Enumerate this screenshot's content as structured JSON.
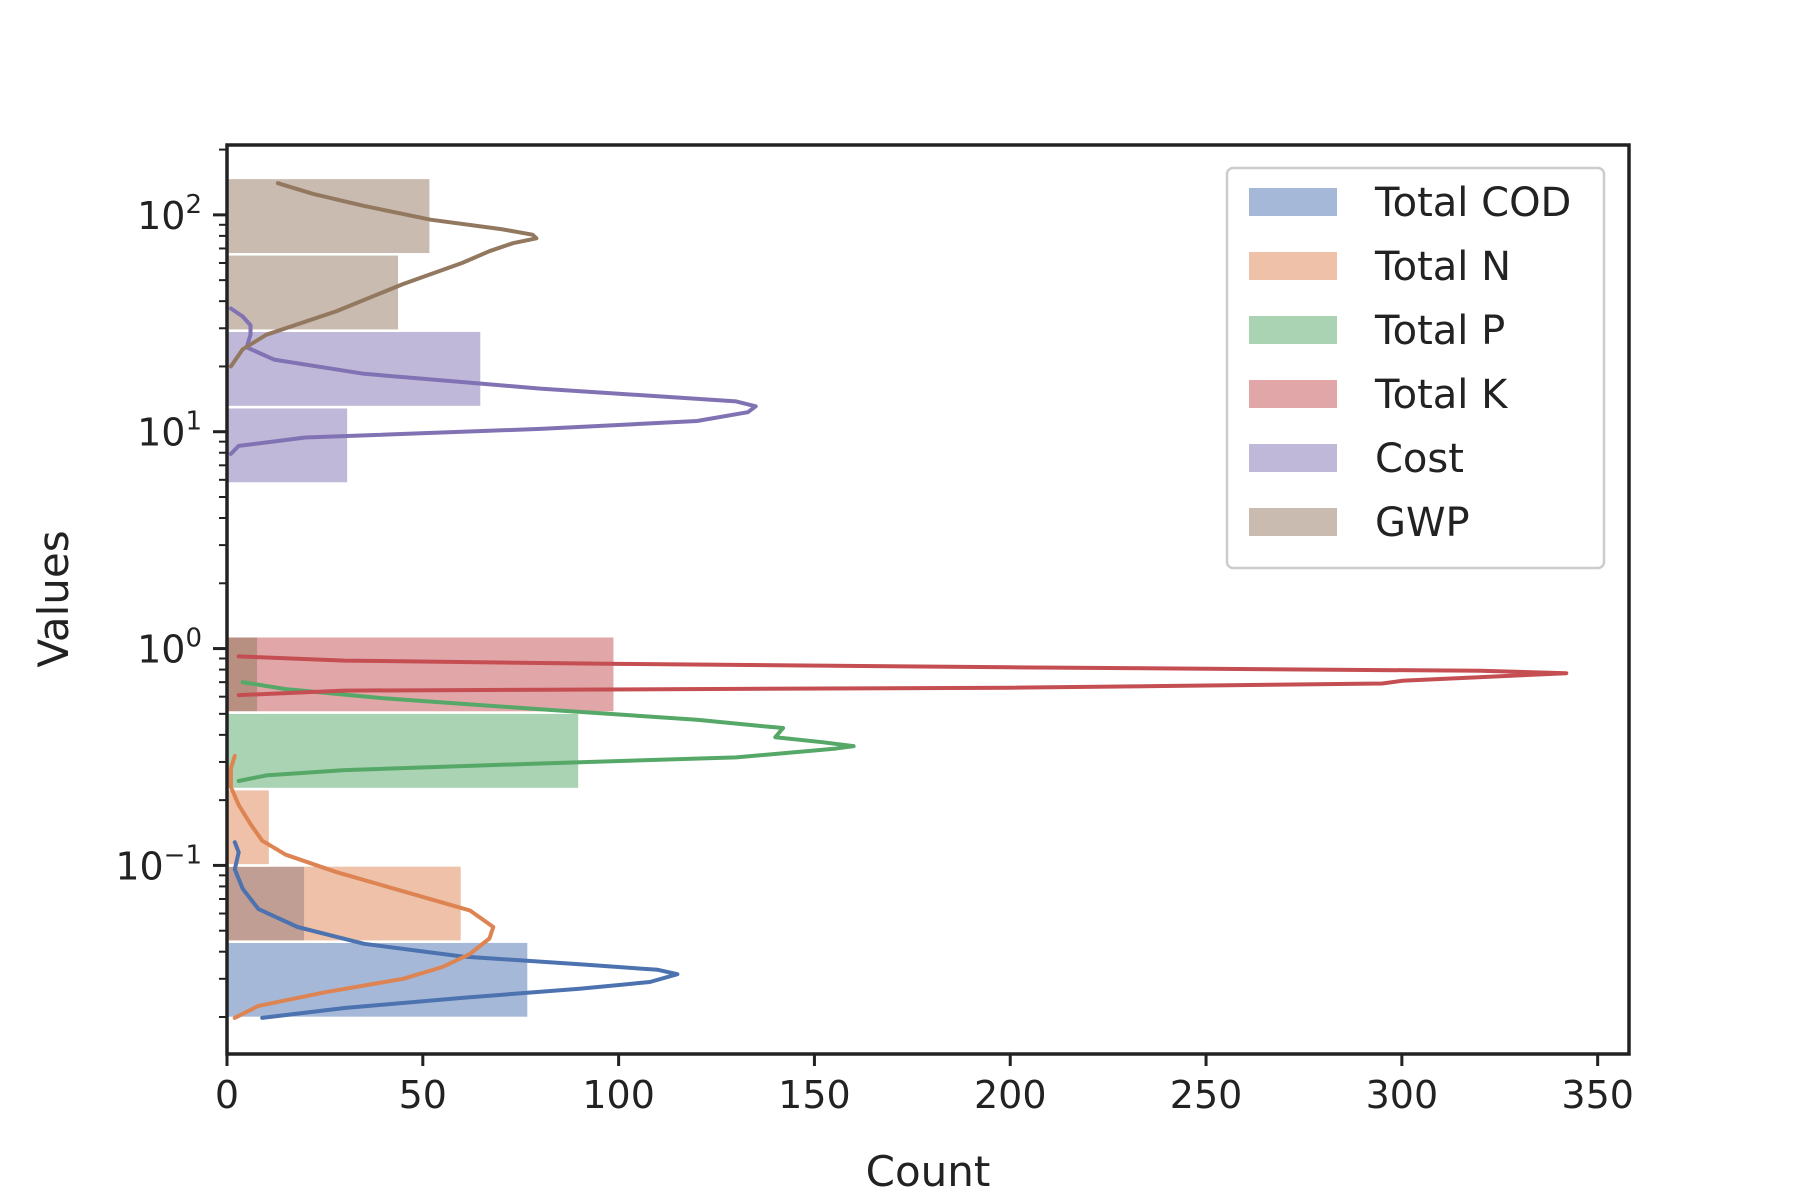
{
  "chart_data": {
    "type": "histogram",
    "orientation": "horizontal",
    "xlabel": "Count",
    "ylabel": "Values",
    "xlim": [
      0,
      358
    ],
    "ylim": [
      0.0135,
      210
    ],
    "yscale": "log",
    "xticks": [
      0,
      50,
      100,
      150,
      200,
      250,
      300,
      350
    ],
    "yticks": [
      {
        "value": 0.1,
        "base": "10",
        "exp": "−1"
      },
      {
        "value": 1,
        "base": "10",
        "exp": "0"
      },
      {
        "value": 10,
        "base": "10",
        "exp": "1"
      },
      {
        "value": 100,
        "base": "10",
        "exp": "2"
      }
    ],
    "grid": false,
    "legend_position": "top-right",
    "series": [
      {
        "name": "Total COD",
        "color": "#4c72b0",
        "bins": [
          {
            "lo": 0.0198,
            "hi": 0.0445,
            "count": 77
          },
          {
            "lo": 0.0445,
            "hi": 0.1,
            "count": 20
          }
        ],
        "kde": [
          [
            9,
            0.0198
          ],
          [
            30,
            0.022
          ],
          [
            60,
            0.0245
          ],
          [
            90,
            0.027
          ],
          [
            108,
            0.029
          ],
          [
            115,
            0.0315
          ],
          [
            110,
            0.033
          ],
          [
            90,
            0.035
          ],
          [
            60,
            0.038
          ],
          [
            35,
            0.0435
          ],
          [
            18,
            0.052
          ],
          [
            8,
            0.063
          ],
          [
            4,
            0.078
          ],
          [
            2,
            0.096
          ],
          [
            3,
            0.115
          ],
          [
            2,
            0.128
          ]
        ]
      },
      {
        "name": "Total N",
        "color": "#dd8452",
        "bins": [
          {
            "lo": 0.0445,
            "hi": 0.1,
            "count": 60
          },
          {
            "lo": 0.1,
            "hi": 0.225,
            "count": 11
          }
        ],
        "kde": [
          [
            2,
            0.0198
          ],
          [
            8,
            0.0225
          ],
          [
            25,
            0.026
          ],
          [
            45,
            0.03
          ],
          [
            55,
            0.034
          ],
          [
            62,
            0.039
          ],
          [
            67,
            0.046
          ],
          [
            68,
            0.052
          ],
          [
            62,
            0.062
          ],
          [
            45,
            0.076
          ],
          [
            28,
            0.093
          ],
          [
            15,
            0.112
          ],
          [
            9,
            0.13
          ],
          [
            6,
            0.155
          ],
          [
            3,
            0.19
          ],
          [
            1,
            0.23
          ],
          [
            1,
            0.28
          ],
          [
            2,
            0.32
          ]
        ]
      },
      {
        "name": "Total P",
        "color": "#55a868",
        "bins": [
          {
            "lo": 0.225,
            "hi": 0.507,
            "count": 90
          },
          {
            "lo": 0.507,
            "hi": 1.14,
            "count": 8
          }
        ],
        "kde": [
          [
            3,
            0.245
          ],
          [
            10,
            0.26
          ],
          [
            30,
            0.275
          ],
          [
            80,
            0.295
          ],
          [
            130,
            0.315
          ],
          [
            155,
            0.345
          ],
          [
            160,
            0.355
          ],
          [
            152,
            0.37
          ],
          [
            140,
            0.39
          ],
          [
            142,
            0.43
          ],
          [
            136,
            0.44
          ],
          [
            120,
            0.47
          ],
          [
            80,
            0.525
          ],
          [
            40,
            0.59
          ],
          [
            15,
            0.65
          ],
          [
            4,
            0.7
          ]
        ]
      },
      {
        "name": "Total K",
        "color": "#c44e52",
        "bins": [
          {
            "lo": 0.507,
            "hi": 1.14,
            "count": 99
          }
        ],
        "kde": [
          [
            3,
            0.61
          ],
          [
            30,
            0.64
          ],
          [
            200,
            0.66
          ],
          [
            295,
            0.69
          ],
          [
            300,
            0.71
          ],
          [
            342,
            0.77
          ],
          [
            320,
            0.79
          ],
          [
            200,
            0.82
          ],
          [
            100,
            0.85
          ],
          [
            30,
            0.88
          ],
          [
            3,
            0.92
          ]
        ]
      },
      {
        "name": "Cost",
        "color": "#8172b3",
        "bins": [
          {
            "lo": 5.77,
            "hi": 12.99,
            "count": 31
          },
          {
            "lo": 12.99,
            "hi": 29.24,
            "count": 65
          }
        ],
        "kde": [
          [
            1,
            7.9
          ],
          [
            3,
            8.6
          ],
          [
            20,
            9.4
          ],
          [
            80,
            10.3
          ],
          [
            120,
            11.2
          ],
          [
            133,
            12.3
          ],
          [
            135,
            13.1
          ],
          [
            130,
            13.8
          ],
          [
            80,
            15.8
          ],
          [
            35,
            18.5
          ],
          [
            12,
            21.5
          ],
          [
            5,
            24.5
          ],
          [
            6,
            28
          ],
          [
            6,
            31
          ],
          [
            4,
            34
          ],
          [
            1,
            37
          ]
        ]
      },
      {
        "name": "GWP",
        "color": "#937860",
        "bins": [
          {
            "lo": 29.24,
            "hi": 65.8,
            "count": 44
          },
          {
            "lo": 65.8,
            "hi": 148.1,
            "count": 52
          }
        ],
        "kde": [
          [
            1,
            20
          ],
          [
            4,
            24
          ],
          [
            10,
            28
          ],
          [
            28,
            36
          ],
          [
            45,
            48
          ],
          [
            60,
            60
          ],
          [
            67,
            68
          ],
          [
            73,
            74
          ],
          [
            79,
            78
          ],
          [
            78,
            81
          ],
          [
            70,
            86
          ],
          [
            52,
            95
          ],
          [
            35,
            110
          ],
          [
            22,
            125
          ],
          [
            13,
            140
          ]
        ]
      }
    ]
  }
}
